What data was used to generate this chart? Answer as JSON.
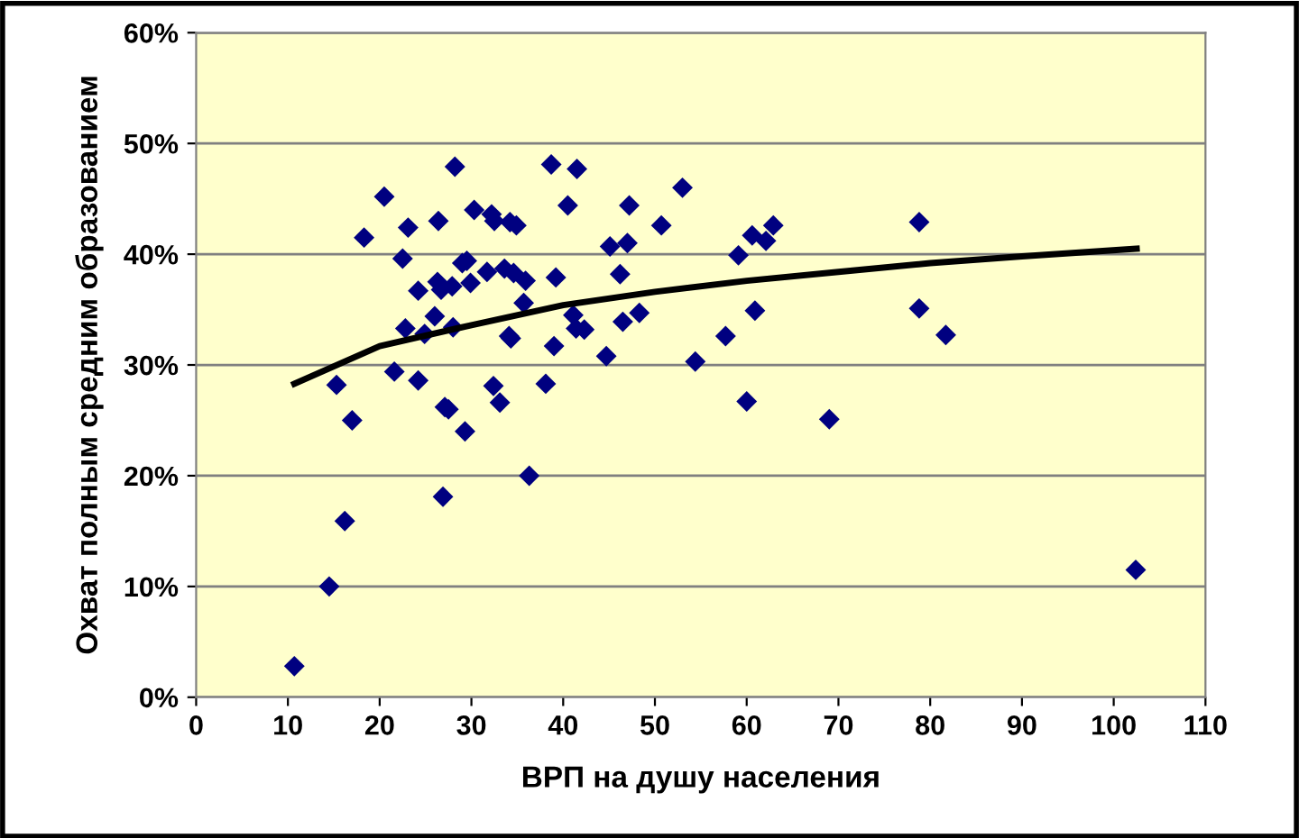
{
  "chart_data": {
    "type": "scatter",
    "xlabel": "ВРП на душу населения",
    "ylabel": "Охват полным средним образованием",
    "xlim": [
      0,
      110
    ],
    "xticks": [
      0,
      10,
      20,
      30,
      40,
      50,
      60,
      70,
      80,
      90,
      100,
      110
    ],
    "ylim": [
      0,
      60
    ],
    "yticks": [
      {
        "value": 0,
        "label": "0%"
      },
      {
        "value": 10,
        "label": "10%"
      },
      {
        "value": 20,
        "label": "20%"
      },
      {
        "value": 30,
        "label": "30%"
      },
      {
        "value": 40,
        "label": "40%"
      },
      {
        "value": 50,
        "label": "50%"
      },
      {
        "value": 60,
        "label": "60%"
      }
    ],
    "grid": "y",
    "legend": false,
    "series": [
      {
        "color": "#000080",
        "marker": "diamond",
        "x": [
          10.7,
          14.5,
          16.2,
          26.9,
          36.3,
          102.4,
          28.2,
          20.5,
          30.3,
          32.2,
          32.5,
          34.2,
          34.9,
          26.4,
          23.1,
          18.3,
          22.5,
          29.0,
          29.5,
          31.7,
          33.6,
          34.6,
          35.9,
          26.3,
          24.2,
          26.7,
          27.9,
          29.9,
          35.7,
          26.0,
          22.8,
          24.9,
          28.0,
          34.1,
          34.3,
          21.6,
          24.2,
          15.3,
          32.4,
          33.1,
          27.1,
          27.5,
          17.0,
          29.3,
          38.1,
          38.7,
          41.5,
          53.0,
          40.5,
          47.2,
          50.7,
          62.9,
          60.6,
          62.1,
          45.1,
          47.0,
          59.1,
          39.2,
          46.2,
          41.1,
          41.4,
          42.3,
          46.5,
          48.3,
          60.9,
          39.0,
          57.7,
          44.7,
          54.4,
          60.0,
          69.0,
          78.8,
          78.8,
          81.7
        ],
        "values": [
          2.8,
          10.0,
          15.9,
          18.1,
          20.0,
          11.5,
          47.9,
          45.2,
          44.0,
          43.6,
          43.0,
          42.9,
          42.6,
          43.0,
          42.4,
          41.5,
          39.6,
          39.2,
          39.4,
          38.4,
          38.7,
          38.3,
          37.6,
          37.5,
          36.7,
          36.8,
          37.1,
          37.4,
          35.6,
          34.4,
          33.3,
          32.8,
          33.4,
          32.6,
          32.4,
          29.4,
          28.6,
          28.2,
          28.1,
          26.6,
          26.2,
          26.0,
          25.0,
          24.0,
          28.3,
          48.1,
          47.7,
          46.0,
          44.4,
          44.4,
          42.6,
          42.6,
          41.7,
          41.2,
          40.7,
          41.0,
          39.9,
          37.9,
          38.2,
          34.5,
          33.3,
          33.2,
          33.9,
          34.7,
          34.9,
          31.7,
          32.6,
          30.8,
          30.3,
          26.7,
          25.1,
          42.9,
          35.1,
          32.7
        ]
      },
      {
        "type": "line",
        "color": "#000000",
        "marker": "none",
        "line_style": "solid",
        "x": [
          10.7,
          20,
          30,
          40,
          50,
          60,
          70,
          80,
          90,
          102.5
        ],
        "values": [
          28.3,
          31.7,
          33.6,
          35.4,
          36.6,
          37.6,
          38.4,
          39.2,
          39.8,
          40.5
        ]
      }
    ]
  }
}
